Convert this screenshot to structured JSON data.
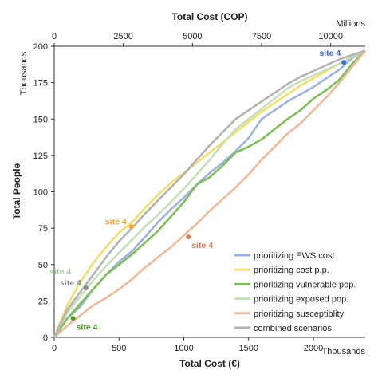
{
  "chart_data": {
    "type": "line",
    "title": "",
    "xlabel": "Total Cost (€)",
    "x_unit": "Thousands",
    "xlim": [
      0,
      2400
    ],
    "x_ticks": [
      "0",
      "500",
      "1000",
      "1500",
      "2000"
    ],
    "x_tick_values": [
      0,
      500,
      1000,
      1500,
      2000
    ],
    "x2label": "Total Cost (COP)",
    "x2_unit": "Millions",
    "x2lim": [
      0,
      11250
    ],
    "x2_ticks": [
      "0",
      "2500",
      "5000",
      "7500",
      "10000"
    ],
    "x2_tick_values": [
      0,
      2500,
      5000,
      7500,
      10000
    ],
    "ylabel": "Total People",
    "y_unit": "Thousands",
    "ylim": [
      0,
      200
    ],
    "y_ticks": [
      "0",
      "25",
      "50",
      "75",
      "100",
      "125",
      "150",
      "175",
      "200"
    ],
    "y_tick_values": [
      0,
      25,
      50,
      75,
      100,
      125,
      150,
      175,
      200
    ],
    "grid": false,
    "legend_position": "bottom-right",
    "series": [
      {
        "name": "prioritizing EWS cost",
        "color": "#9db3dd",
        "x": [
          0,
          100,
          200,
          300,
          400,
          500,
          600,
          700,
          800,
          900,
          1000,
          1100,
          1200,
          1300,
          1400,
          1500,
          1600,
          1700,
          1800,
          1900,
          2000,
          2100,
          2200,
          2300,
          2400
        ],
        "y": [
          0,
          13,
          21,
          33,
          43,
          52,
          59,
          69,
          79,
          88,
          96,
          105,
          113,
          120,
          128,
          137,
          150,
          156,
          162,
          167,
          172,
          178,
          184,
          192,
          197
        ]
      },
      {
        "name": "prioritizing cost p.p.",
        "color": "#f5df6a",
        "x": [
          0,
          100,
          200,
          300,
          400,
          500,
          600,
          700,
          800,
          900,
          1000,
          1100,
          1200,
          1300,
          1400,
          1500,
          1600,
          1700,
          1800,
          1900,
          2000,
          2100,
          2200,
          2300,
          2400
        ],
        "y": [
          0,
          22,
          38,
          51,
          62,
          72,
          79,
          89,
          98,
          106,
          113,
          120,
          127,
          134,
          141,
          148,
          155,
          161,
          167,
          173,
          178,
          183,
          188,
          193,
          197
        ]
      },
      {
        "name": "prioritizing vulnerable pop.",
        "color": "#7ebf5a",
        "x": [
          0,
          100,
          200,
          300,
          400,
          500,
          600,
          700,
          800,
          900,
          1000,
          1100,
          1200,
          1300,
          1400,
          1500,
          1600,
          1700,
          1800,
          1900,
          2000,
          2100,
          2200,
          2300,
          2400
        ],
        "y": [
          0,
          13,
          23,
          33,
          43,
          50,
          57,
          65,
          73,
          83,
          93,
          105,
          110,
          118,
          127,
          131,
          136,
          143,
          150,
          156,
          164,
          170,
          177,
          188,
          197
        ]
      },
      {
        "name": "prioritizing exposed pop.",
        "color": "#c5dfb8",
        "x": [
          0,
          100,
          200,
          300,
          400,
          500,
          600,
          700,
          800,
          900,
          1000,
          1100,
          1200,
          1300,
          1400,
          1500,
          1600,
          1700,
          1800,
          1900,
          2000,
          2100,
          2200,
          2300,
          2400
        ],
        "y": [
          0,
          17,
          28,
          39,
          49,
          58,
          67,
          76,
          84,
          93,
          102,
          112,
          122,
          133,
          143,
          150,
          157,
          164,
          171,
          176,
          180,
          184,
          188,
          193,
          197
        ]
      },
      {
        "name": "prioritizing susceptiblity",
        "color": "#f0b99a",
        "x": [
          0,
          100,
          200,
          300,
          400,
          500,
          600,
          700,
          800,
          900,
          1000,
          1100,
          1200,
          1300,
          1400,
          1500,
          1600,
          1700,
          1800,
          1900,
          2000,
          2100,
          2200,
          2300,
          2400
        ],
        "y": [
          0,
          8,
          15,
          22,
          27,
          33,
          40,
          48,
          55,
          62,
          70,
          78,
          87,
          95,
          103,
          112,
          122,
          131,
          140,
          147,
          156,
          165,
          175,
          186,
          197
        ]
      },
      {
        "name": "combined scenarios",
        "color": "#b3b3b3",
        "x": [
          0,
          100,
          200,
          300,
          400,
          500,
          600,
          700,
          800,
          900,
          1000,
          1100,
          1200,
          1300,
          1400,
          1500,
          1600,
          1700,
          1800,
          1900,
          2000,
          2100,
          2200,
          2300,
          2400
        ],
        "y": [
          0,
          19,
          31,
          43,
          55,
          66,
          75,
          85,
          94,
          103,
          112,
          122,
          132,
          141,
          150,
          156,
          162,
          168,
          174,
          179,
          183,
          187,
          191,
          194,
          197
        ]
      }
    ],
    "annotations": [
      {
        "text": "site 4",
        "x": 2235,
        "y": 189,
        "color": "#3f6cc4",
        "label_pos": "top-left"
      },
      {
        "text": "site 4",
        "x": 595,
        "y": 76,
        "color": "#f0a830",
        "label_pos": "left"
      },
      {
        "text": "site 4",
        "x": 1035,
        "y": 69,
        "color": "#e07a4f",
        "label_pos": "below-right"
      },
      {
        "text": "site 4",
        "x": 245,
        "y": 34,
        "color": "#8a8a8a",
        "label_pos": "left"
      },
      {
        "text": "site 4",
        "x": 145,
        "y": 13,
        "color": "#4f9a2f",
        "label_pos": "below-right"
      }
    ],
    "extra_labels": [
      {
        "text": "site 4",
        "x": 180,
        "y": 40,
        "color": "#a7c79b"
      }
    ]
  }
}
